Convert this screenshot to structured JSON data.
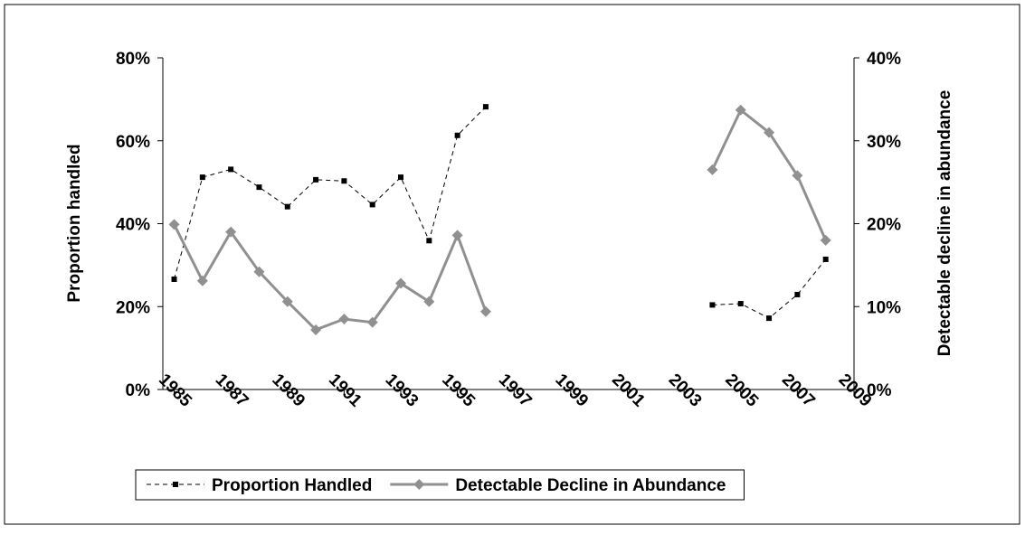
{
  "chart_data": {
    "type": "line",
    "x": [
      1985,
      1986,
      1987,
      1988,
      1989,
      1990,
      1991,
      1992,
      1993,
      1994,
      1995,
      1996,
      2004,
      2005,
      2006,
      2007,
      2008
    ],
    "xlim": [
      1984.6,
      2009
    ],
    "xticks": [
      1985,
      1987,
      1989,
      1991,
      1993,
      1995,
      1997,
      1999,
      2001,
      2003,
      2005,
      2007,
      2009
    ],
    "ylabel": "Proportion handled",
    "y2label": "Detectable decline in abundance",
    "ylim": [
      0,
      80
    ],
    "yticks": [
      {
        "value": 0,
        "label": "0%"
      },
      {
        "value": 20,
        "label": "20%"
      },
      {
        "value": 40,
        "label": "40%"
      },
      {
        "value": 60,
        "label": "60%"
      },
      {
        "value": 80,
        "label": "80%"
      }
    ],
    "y2lim": [
      0,
      40
    ],
    "y2ticks": [
      {
        "value": 0,
        "label": "0%"
      },
      {
        "value": 10,
        "label": "10%"
      },
      {
        "value": 20,
        "label": "20%"
      },
      {
        "value": 30,
        "label": "30%"
      },
      {
        "value": 40,
        "label": "40%"
      }
    ],
    "legend": "bottom",
    "series": [
      {
        "name": "Proportion Handled",
        "color": "#000000",
        "style": "dashed",
        "marker": "square",
        "values": [
          26.6,
          51.2,
          53.1,
          48.8,
          44.1,
          50.6,
          50.3,
          44.6,
          51.2,
          35.9,
          61.3,
          68.2,
          20.4,
          20.7,
          17.2,
          22.9,
          31.4
        ]
      },
      {
        "name": "Detectable Decline in Abundance",
        "color": "#909090",
        "style": "solid",
        "marker": "diamond",
        "axis": "y2",
        "values": [
          19.9,
          13.1,
          19.0,
          14.2,
          10.6,
          7.2,
          8.5,
          8.1,
          12.8,
          10.6,
          18.6,
          9.4,
          26.5,
          33.7,
          31.0,
          25.8,
          18.0
        ]
      }
    ]
  }
}
